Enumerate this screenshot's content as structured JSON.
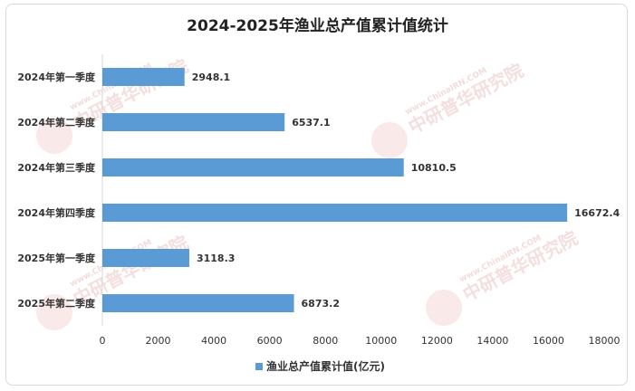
{
  "chart_data": {
    "type": "bar",
    "orientation": "horizontal",
    "title": "2024-2025年渔业总产值累计值统计",
    "categories": [
      "2024年第一季度",
      "2024年第二季度",
      "2024年第三季度",
      "2024年第四季度",
      "2025年第一季度",
      "2025年第二季度"
    ],
    "series": [
      {
        "name": "渔业总产值累计值(亿元)",
        "values": [
          2948.1,
          6537.1,
          10810.5,
          16672.4,
          3118.3,
          6873.2
        ],
        "color": "#5b9bd5"
      }
    ],
    "xlim": [
      0,
      18000
    ],
    "xticks": [
      0,
      2000,
      4000,
      6000,
      8000,
      10000,
      12000,
      14000,
      16000,
      18000
    ],
    "grid": false,
    "legend_position": "bottom"
  },
  "watermark": {
    "site": "www.ChinaIRN.COM",
    "brand": "中研普华研究院",
    "logo": "CIRN"
  }
}
